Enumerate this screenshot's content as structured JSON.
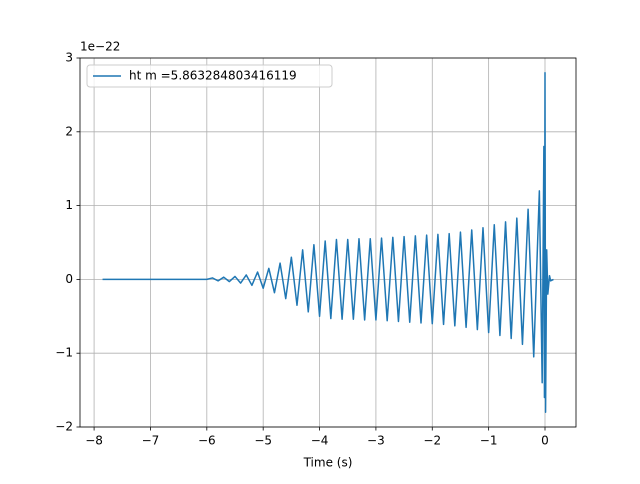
{
  "chart_data": {
    "type": "line",
    "xlabel": "Time (s)",
    "offset_text": "1e−22",
    "x": [
      -7.85,
      -6.0,
      -5.9,
      -5.8,
      -5.7,
      -5.6,
      -5.5,
      -5.4,
      -5.3,
      -5.2,
      -5.1,
      -5.0,
      -4.9,
      -4.8,
      -4.7,
      -4.6,
      -4.5,
      -4.4,
      -4.3,
      -4.2,
      -4.1,
      -4.0,
      -3.9,
      -3.8,
      -3.7,
      -3.6,
      -3.5,
      -3.4,
      -3.3,
      -3.2,
      -3.1,
      -3.0,
      -2.9,
      -2.8,
      -2.7,
      -2.6,
      -2.5,
      -2.4,
      -2.3,
      -2.2,
      -2.1,
      -2.0,
      -1.9,
      -1.8,
      -1.7,
      -1.6,
      -1.5,
      -1.4,
      -1.3,
      -1.2,
      -1.1,
      -1.0,
      -0.9,
      -0.8,
      -0.7,
      -0.6,
      -0.5,
      -0.4,
      -0.3,
      -0.2,
      -0.1,
      -0.05,
      -0.02,
      -0.01,
      0.0,
      0.01,
      0.03,
      0.05,
      0.08,
      0.1,
      0.15
    ],
    "series": [
      {
        "name": "ht m =5.863284803416119",
        "color": "#1f77b4",
        "values": [
          0,
          0,
          0.02,
          -0.02,
          0.03,
          -0.03,
          0.04,
          -0.05,
          0.06,
          -0.08,
          0.1,
          -0.12,
          0.15,
          -0.18,
          0.22,
          -0.26,
          0.3,
          -0.35,
          0.4,
          -0.44,
          0.47,
          -0.5,
          0.52,
          -0.53,
          0.54,
          -0.54,
          0.54,
          -0.54,
          0.55,
          -0.55,
          0.55,
          -0.55,
          0.56,
          -0.56,
          0.57,
          -0.57,
          0.58,
          -0.58,
          0.59,
          -0.59,
          0.6,
          -0.6,
          0.61,
          -0.61,
          0.62,
          -0.63,
          0.64,
          -0.65,
          0.67,
          -0.68,
          0.7,
          -0.72,
          0.74,
          -0.76,
          0.78,
          -0.8,
          0.83,
          -0.88,
          0.95,
          -1.05,
          1.2,
          -1.4,
          1.8,
          -1.6,
          2.8,
          -1.8,
          0.4,
          -0.2,
          0.05,
          -0.02,
          0
        ]
      }
    ],
    "xlim": [
      -8.25,
      0.55
    ],
    "ylim": [
      -2,
      3
    ],
    "xticks": [
      {
        "value": -8,
        "label": "−8"
      },
      {
        "value": -7,
        "label": "−7"
      },
      {
        "value": -6,
        "label": "−6"
      },
      {
        "value": -5,
        "label": "−5"
      },
      {
        "value": -4,
        "label": "−4"
      },
      {
        "value": -3,
        "label": "−3"
      },
      {
        "value": -2,
        "label": "−2"
      },
      {
        "value": -1,
        "label": "−1"
      },
      0
    ],
    "yticks": [
      {
        "value": -2,
        "label": "−2"
      },
      {
        "value": -1,
        "label": "−1"
      },
      0,
      1,
      2,
      3
    ],
    "grid": true,
    "legend": "upper left"
  }
}
